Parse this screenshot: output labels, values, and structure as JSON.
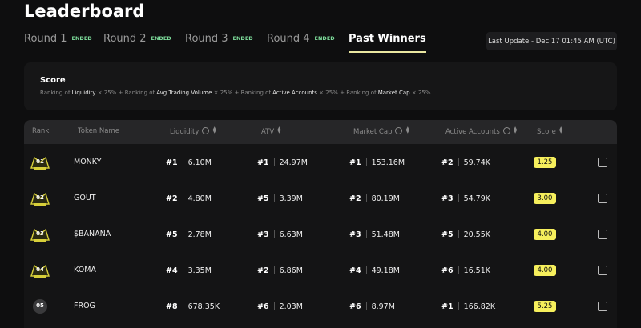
{
  "header": {
    "title": "Leaderboard"
  },
  "tabs": [
    {
      "label": "Round 1",
      "status": "ENDED"
    },
    {
      "label": "Round 2",
      "status": "ENDED"
    },
    {
      "label": "Round 3",
      "status": "ENDED"
    },
    {
      "label": "Round 4",
      "status": "ENDED"
    },
    {
      "label": "Past Winners"
    }
  ],
  "last_update": "Last Update - Dec 17 01:45 AM (UTC)",
  "score_formula": {
    "title": "Score",
    "prefix": "Ranking of",
    "operator": "+",
    "terms": [
      {
        "metric": "Liquidity",
        "weight": "× 25%"
      },
      {
        "metric": "Avg Trading Volume",
        "weight": "× 25%"
      },
      {
        "metric": "Active Accounts",
        "weight": "× 25%"
      },
      {
        "metric": "Market Cap",
        "weight": "× 25%"
      }
    ]
  },
  "table": {
    "columns": [
      "Rank",
      "Token Name",
      "Liquidity",
      "ATV",
      "Market Cap",
      "Active Accounts",
      "Score"
    ],
    "rows": [
      {
        "rank": "01",
        "token": "MONKY",
        "liquidity": [
          "#1",
          "6.10M"
        ],
        "atv": [
          "#1",
          "24.97M"
        ],
        "market_cap": [
          "#1",
          "153.16M"
        ],
        "active_accounts": [
          "#2",
          "59.74K"
        ],
        "score": "1.25"
      },
      {
        "rank": "02",
        "token": "GOUT",
        "liquidity": [
          "#2",
          "4.80M"
        ],
        "atv": [
          "#5",
          "3.39M"
        ],
        "market_cap": [
          "#2",
          "80.19M"
        ],
        "active_accounts": [
          "#3",
          "54.79K"
        ],
        "score": "3.00"
      },
      {
        "rank": "03",
        "token": "$BANANA",
        "liquidity": [
          "#5",
          "2.78M"
        ],
        "atv": [
          "#3",
          "6.63M"
        ],
        "market_cap": [
          "#3",
          "51.48M"
        ],
        "active_accounts": [
          "#5",
          "20.55K"
        ],
        "score": "4.00"
      },
      {
        "rank": "04",
        "token": "KOMA",
        "liquidity": [
          "#4",
          "3.35M"
        ],
        "atv": [
          "#2",
          "6.86M"
        ],
        "market_cap": [
          "#4",
          "49.18M"
        ],
        "active_accounts": [
          "#6",
          "16.51K"
        ],
        "score": "4.00"
      },
      {
        "rank": "05",
        "token": "FROG",
        "liquidity": [
          "#8",
          "678.35K"
        ],
        "atv": [
          "#6",
          "2.03M"
        ],
        "market_cap": [
          "#6",
          "8.97M"
        ],
        "active_accounts": [
          "#1",
          "166.82K"
        ],
        "score": "5.25"
      }
    ]
  }
}
